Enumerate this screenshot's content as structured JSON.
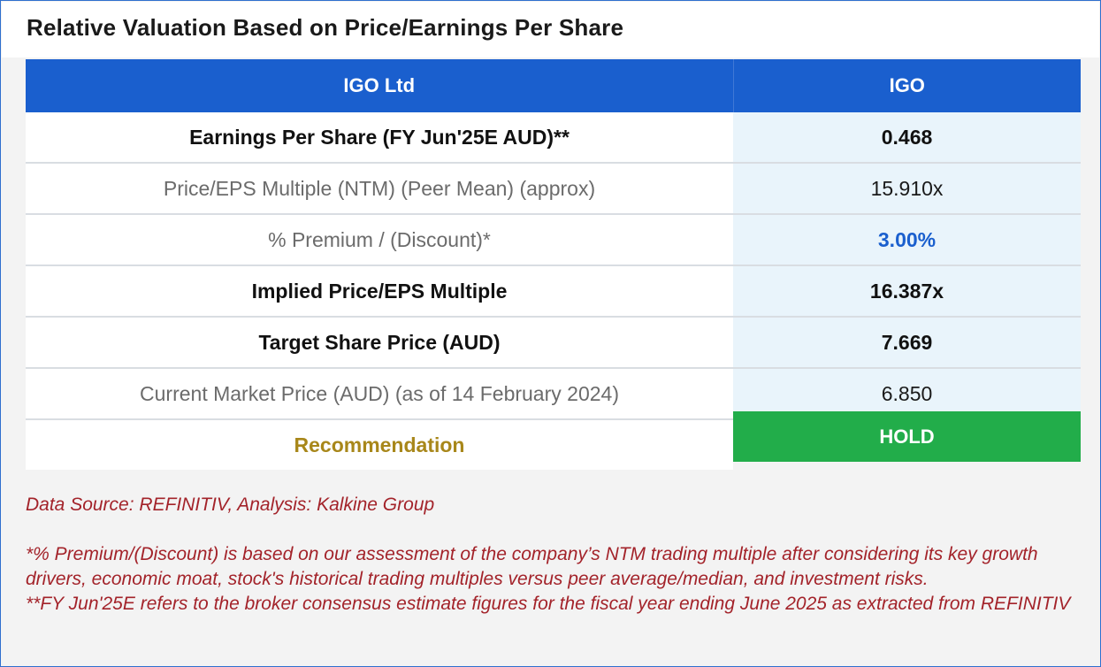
{
  "title": "Relative Valuation Based on Price/Earnings Per Share",
  "table": {
    "header": [
      "IGO Ltd",
      "IGO"
    ],
    "rows": [
      {
        "label": "Earnings Per Share (FY Jun'25E AUD)**",
        "value": "0.468"
      },
      {
        "label": "Price/EPS Multiple (NTM) (Peer Mean) (approx)",
        "value": "15.910x"
      },
      {
        "label": "% Premium / (Discount)*",
        "value": "3.00%"
      },
      {
        "label": "Implied Price/EPS Multiple",
        "value": "16.387x"
      },
      {
        "label": "Target Share Price (AUD)",
        "value": "7.669"
      },
      {
        "label": "Current Market Price (AUD) (as of 14 February 2024)",
        "value": "6.850"
      }
    ],
    "recommendation": {
      "label": "Recommendation",
      "value": "HOLD"
    }
  },
  "notes": {
    "source": "Data Source: REFINITIV, Analysis: Kalkine Group",
    "premium_note": "*% Premium/(Discount) is based on our assessment of the company’s NTM trading multiple after considering its key growth drivers, economic moat, stock's historical trading multiples versus peer average/median, and investment risks.",
    "fy_note": "**FY Jun'25E refers to the broker consensus estimate figures for the fiscal year ending June 2025 as extracted from REFINITIV"
  },
  "colors": {
    "header_blue": "#1a5fce",
    "hold_green": "#22ad4a",
    "recommendation_gold": "#a8871a",
    "note_red": "#a3232a",
    "premium_blue": "#1a5fce"
  }
}
